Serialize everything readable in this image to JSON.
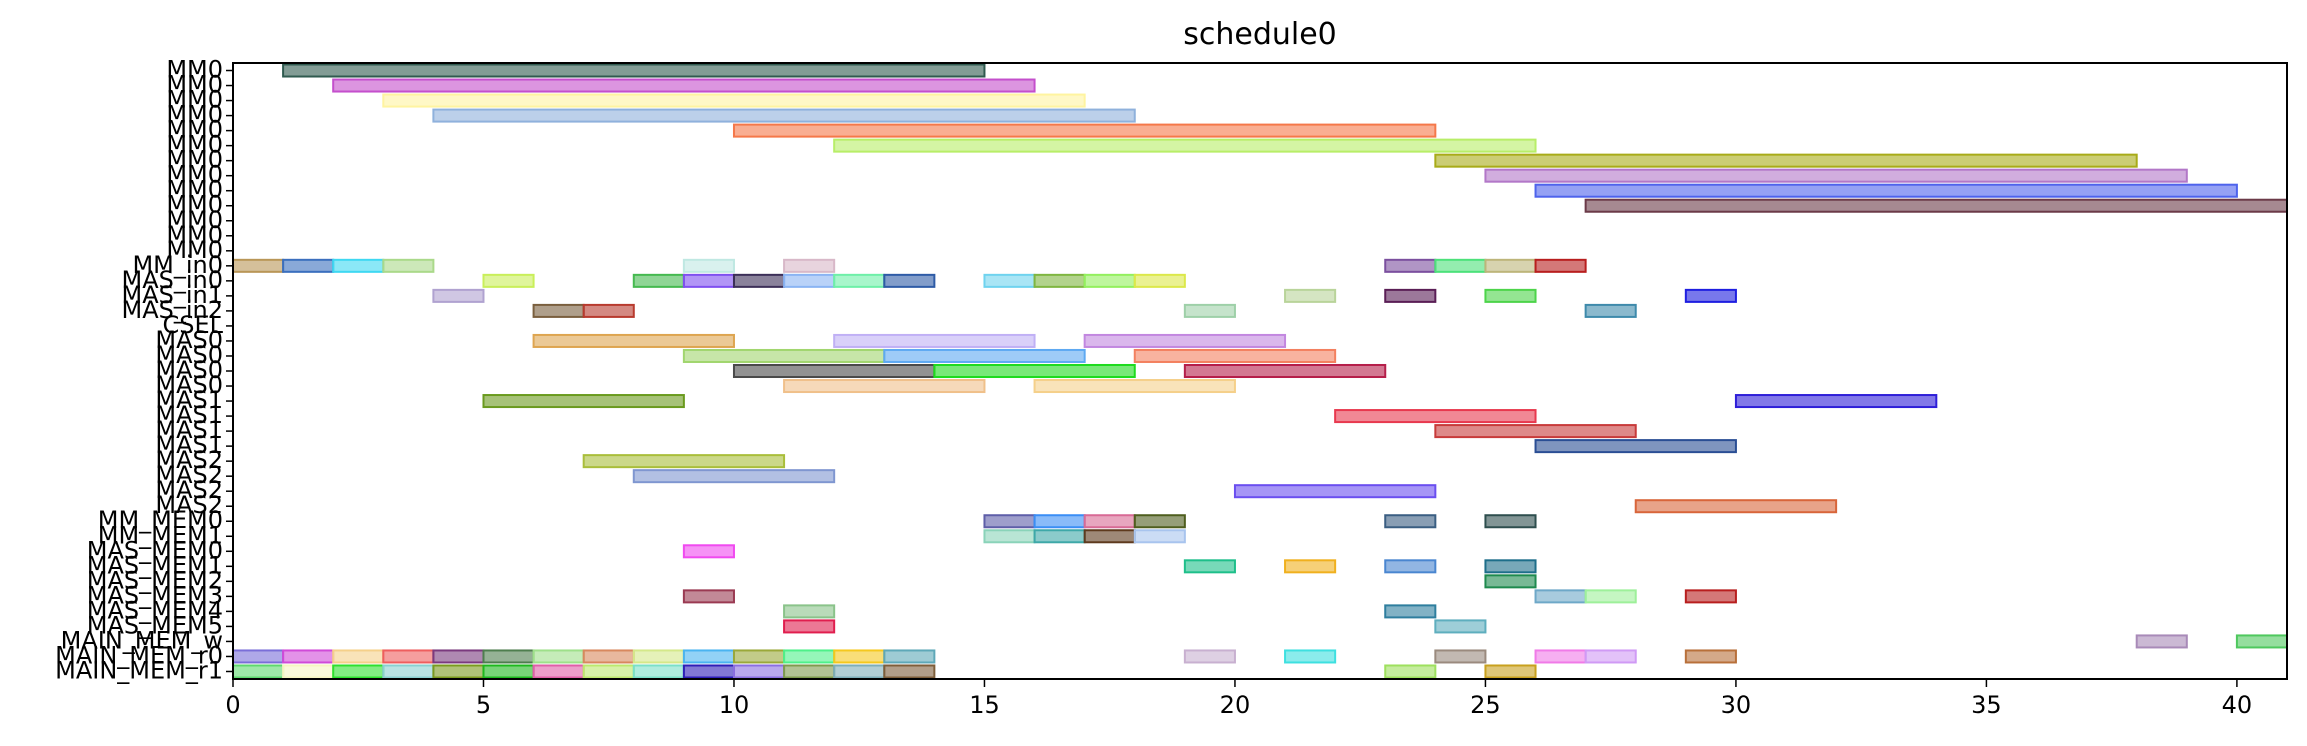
{
  "chart_data": {
    "type": "gantt",
    "title": "schedule0",
    "xlabel": "",
    "ylabel": "",
    "xlim": [
      0,
      41
    ],
    "xticks": [
      0,
      5,
      10,
      15,
      20,
      25,
      30,
      35,
      40
    ],
    "grid": false,
    "rows": [
      "MM0",
      "MM0",
      "MM0",
      "MM0",
      "MM0",
      "MM0",
      "MM0",
      "MM0",
      "MM0",
      "MM0",
      "MM0",
      "MM0",
      "MM0",
      "MM_in0",
      "MAS_in0",
      "MAS_in1",
      "MAS_in2",
      "CSEL",
      "MAS0",
      "MAS0",
      "MAS0",
      "MAS0",
      "MAS1",
      "MAS1",
      "MAS1",
      "MAS1",
      "MAS2",
      "MAS2",
      "MAS2",
      "MAS2",
      "MM_MEM0",
      "MM_MEM1",
      "MAS_MEM0",
      "MAS_MEM1",
      "MAS_MEM2",
      "MAS_MEM3",
      "MAS_MEM4",
      "MAS_MEM5",
      "MAIN_MEM_w",
      "MAIN_MEM_r0",
      "MAIN_MEM_r1"
    ],
    "tasks": [
      {
        "row": 0,
        "start": 1,
        "end": 15,
        "color": "#2f5a4f"
      },
      {
        "row": 1,
        "start": 2,
        "end": 16,
        "color": "#c44fcc"
      },
      {
        "row": 2,
        "start": 3,
        "end": 17,
        "color": "#fff4a0"
      },
      {
        "row": 3,
        "start": 4,
        "end": 18,
        "color": "#8fb1dc"
      },
      {
        "row": 4,
        "start": 10,
        "end": 24,
        "color": "#f5784a"
      },
      {
        "row": 5,
        "start": 12,
        "end": 26,
        "color": "#b8ee68"
      },
      {
        "row": 6,
        "start": 24,
        "end": 38,
        "color": "#a8ab18"
      },
      {
        "row": 7,
        "start": 25,
        "end": 39,
        "color": "#b277c8"
      },
      {
        "row": 8,
        "start": 26,
        "end": 40,
        "color": "#4e63ec"
      },
      {
        "row": 9,
        "start": 27,
        "end": 41,
        "color": "#6b3a48"
      },
      {
        "row": 13,
        "start": 0,
        "end": 1,
        "color": "#b99657"
      },
      {
        "row": 13,
        "start": 1,
        "end": 2,
        "color": "#3b6fbe"
      },
      {
        "row": 13,
        "start": 2,
        "end": 3,
        "color": "#3ed8f2"
      },
      {
        "row": 13,
        "start": 3,
        "end": 4,
        "color": "#aad98a"
      },
      {
        "row": 13,
        "start": 9,
        "end": 10,
        "color": "#bfe8e2"
      },
      {
        "row": 13,
        "start": 11,
        "end": 12,
        "color": "#d8b8c8"
      },
      {
        "row": 13,
        "start": 23,
        "end": 24,
        "color": "#7b4f9e"
      },
      {
        "row": 13,
        "start": 24,
        "end": 25,
        "color": "#4ce17a"
      },
      {
        "row": 13,
        "start": 25,
        "end": 26,
        "color": "#bdb57a"
      },
      {
        "row": 13,
        "start": 26,
        "end": 27,
        "color": "#b81e1e"
      },
      {
        "row": 14,
        "start": 5,
        "end": 6,
        "color": "#c9ef5a"
      },
      {
        "row": 14,
        "start": 8,
        "end": 9,
        "color": "#45b94f"
      },
      {
        "row": 14,
        "start": 9,
        "end": 10,
        "color": "#7f4ff0"
      },
      {
        "row": 14,
        "start": 10,
        "end": 11,
        "color": "#3c2f58"
      },
      {
        "row": 14,
        "start": 11,
        "end": 12,
        "color": "#8ab4f3"
      },
      {
        "row": 14,
        "start": 12,
        "end": 13,
        "color": "#6ef0a8"
      },
      {
        "row": 14,
        "start": 13,
        "end": 14,
        "color": "#2e5ba6"
      },
      {
        "row": 14,
        "start": 15,
        "end": 16,
        "color": "#6fd3ef"
      },
      {
        "row": 14,
        "start": 16,
        "end": 17,
        "color": "#7fb640"
      },
      {
        "row": 14,
        "start": 17,
        "end": 18,
        "color": "#93f05e"
      },
      {
        "row": 14,
        "start": 18,
        "end": 19,
        "color": "#dce84a"
      },
      {
        "row": 15,
        "start": 4,
        "end": 5,
        "color": "#b0a2d0"
      },
      {
        "row": 15,
        "start": 21,
        "end": 22,
        "color": "#b9d49a"
      },
      {
        "row": 15,
        "start": 23,
        "end": 24,
        "color": "#5a1e56"
      },
      {
        "row": 15,
        "start": 25,
        "end": 26,
        "color": "#4dd44a"
      },
      {
        "row": 15,
        "start": 29,
        "end": 30,
        "color": "#1e1ee0"
      },
      {
        "row": 16,
        "start": 6,
        "end": 7,
        "color": "#7a5f3e"
      },
      {
        "row": 16,
        "start": 7,
        "end": 8,
        "color": "#b83a2e"
      },
      {
        "row": 16,
        "start": 19,
        "end": 20,
        "color": "#9ed0a8"
      },
      {
        "row": 16,
        "start": 27,
        "end": 28,
        "color": "#3e8aab"
      },
      {
        "row": 18,
        "start": 6,
        "end": 10,
        "color": "#dea550"
      },
      {
        "row": 18,
        "start": 12,
        "end": 16,
        "color": "#c0b0f5"
      },
      {
        "row": 18,
        "start": 17,
        "end": 21,
        "color": "#c287e0"
      },
      {
        "row": 19,
        "start": 9,
        "end": 13,
        "color": "#a1d66e"
      },
      {
        "row": 19,
        "start": 13,
        "end": 17,
        "color": "#5ea9f2"
      },
      {
        "row": 19,
        "start": 18,
        "end": 22,
        "color": "#f3805f"
      },
      {
        "row": 20,
        "start": 10,
        "end": 14,
        "color": "#4a4a4a"
      },
      {
        "row": 20,
        "start": 14,
        "end": 18,
        "color": "#1edb1e"
      },
      {
        "row": 20,
        "start": 19,
        "end": 23,
        "color": "#b51e4a"
      },
      {
        "row": 21,
        "start": 11,
        "end": 15,
        "color": "#f0c08a"
      },
      {
        "row": 21,
        "start": 16,
        "end": 20,
        "color": "#f5d08a"
      },
      {
        "row": 22,
        "start": 5,
        "end": 9,
        "color": "#6a9a1e"
      },
      {
        "row": 22,
        "start": 30,
        "end": 34,
        "color": "#2e1ed8"
      },
      {
        "row": 23,
        "start": 22,
        "end": 26,
        "color": "#e8384e"
      },
      {
        "row": 24,
        "start": 24,
        "end": 28,
        "color": "#c83a3a"
      },
      {
        "row": 25,
        "start": 26,
        "end": 30,
        "color": "#2a4e94"
      },
      {
        "row": 26,
        "start": 7,
        "end": 11,
        "color": "#a9be3a"
      },
      {
        "row": 27,
        "start": 8,
        "end": 12,
        "color": "#7f96d0"
      },
      {
        "row": 28,
        "start": 20,
        "end": 24,
        "color": "#6a4ef0"
      },
      {
        "row": 29,
        "start": 28,
        "end": 32,
        "color": "#d8653a"
      },
      {
        "row": 30,
        "start": 15,
        "end": 16,
        "color": "#5e5ea8"
      },
      {
        "row": 30,
        "start": 16,
        "end": 17,
        "color": "#3a8ef5"
      },
      {
        "row": 30,
        "start": 17,
        "end": 18,
        "color": "#d86a95"
      },
      {
        "row": 30,
        "start": 18,
        "end": 19,
        "color": "#4e5e1e"
      },
      {
        "row": 30,
        "start": 23,
        "end": 24,
        "color": "#3a5e82"
      },
      {
        "row": 30,
        "start": 25,
        "end": 26,
        "color": "#2e4e4e"
      },
      {
        "row": 31,
        "start": 15,
        "end": 16,
        "color": "#8ad3b9"
      },
      {
        "row": 31,
        "start": 16,
        "end": 17,
        "color": "#3ea8a8"
      },
      {
        "row": 31,
        "start": 17,
        "end": 18,
        "color": "#5e3a1e"
      },
      {
        "row": 31,
        "start": 18,
        "end": 19,
        "color": "#a8c4ee"
      },
      {
        "row": 32,
        "start": 9,
        "end": 10,
        "color": "#f04af0"
      },
      {
        "row": 33,
        "start": 19,
        "end": 20,
        "color": "#1ebf8a"
      },
      {
        "row": 33,
        "start": 21,
        "end": 22,
        "color": "#f0b01e"
      },
      {
        "row": 33,
        "start": 23,
        "end": 24,
        "color": "#4a86d0"
      },
      {
        "row": 33,
        "start": 25,
        "end": 26,
        "color": "#1e6e8a"
      },
      {
        "row": 34,
        "start": 25,
        "end": 26,
        "color": "#1e8a4e"
      },
      {
        "row": 35,
        "start": 9,
        "end": 10,
        "color": "#9a3a52"
      },
      {
        "row": 35,
        "start": 26,
        "end": 27,
        "color": "#6ea8c8"
      },
      {
        "row": 35,
        "start": 27,
        "end": 28,
        "color": "#9ef09a"
      },
      {
        "row": 35,
        "start": 29,
        "end": 30,
        "color": "#b81e1e"
      },
      {
        "row": 36,
        "start": 11,
        "end": 12,
        "color": "#8ac38a"
      },
      {
        "row": 36,
        "start": 23,
        "end": 24,
        "color": "#2e7e9e"
      },
      {
        "row": 37,
        "start": 11,
        "end": 12,
        "color": "#e01e4e"
      },
      {
        "row": 37,
        "start": 24,
        "end": 25,
        "color": "#5eaebe"
      },
      {
        "row": 38,
        "start": 38,
        "end": 39,
        "color": "#a88ab8"
      },
      {
        "row": 38,
        "start": 40,
        "end": 41,
        "color": "#4ec85e"
      },
      {
        "row": 39,
        "start": 0,
        "end": 1,
        "color": "#7a6ed8"
      },
      {
        "row": 39,
        "start": 1,
        "end": 2,
        "color": "#d04ad8"
      },
      {
        "row": 39,
        "start": 2,
        "end": 3,
        "color": "#f5d08a"
      },
      {
        "row": 39,
        "start": 3,
        "end": 4,
        "color": "#ee5e5e"
      },
      {
        "row": 39,
        "start": 4,
        "end": 5,
        "color": "#7a3a7e"
      },
      {
        "row": 39,
        "start": 5,
        "end": 6,
        "color": "#4e7e4e"
      },
      {
        "row": 39,
        "start": 6,
        "end": 7,
        "color": "#9ee08a"
      },
      {
        "row": 39,
        "start": 7,
        "end": 8,
        "color": "#d8885e"
      },
      {
        "row": 39,
        "start": 8,
        "end": 9,
        "color": "#d4e88a"
      },
      {
        "row": 39,
        "start": 9,
        "end": 10,
        "color": "#4ab4f0"
      },
      {
        "row": 39,
        "start": 10,
        "end": 11,
        "color": "#9aa83a"
      },
      {
        "row": 39,
        "start": 11,
        "end": 12,
        "color": "#4ef08a"
      },
      {
        "row": 39,
        "start": 12,
        "end": 13,
        "color": "#f5c81e"
      },
      {
        "row": 39,
        "start": 13,
        "end": 14,
        "color": "#5ea8b8"
      },
      {
        "row": 39,
        "start": 19,
        "end": 20,
        "color": "#c8b0d0"
      },
      {
        "row": 39,
        "start": 21,
        "end": 22,
        "color": "#3ee0e0"
      },
      {
        "row": 39,
        "start": 24,
        "end": 25,
        "color": "#9a8a7e"
      },
      {
        "row": 39,
        "start": 26,
        "end": 27,
        "color": "#f07ae8"
      },
      {
        "row": 39,
        "start": 27,
        "end": 28,
        "color": "#d09af5"
      },
      {
        "row": 39,
        "start": 29,
        "end": 30,
        "color": "#b8703a"
      },
      {
        "row": 40,
        "start": 0,
        "end": 1,
        "color": "#5ed86e"
      },
      {
        "row": 40,
        "start": 1,
        "end": 2,
        "color": "#f5f5c0"
      },
      {
        "row": 40,
        "start": 2,
        "end": 3,
        "color": "#2ee02e"
      },
      {
        "row": 40,
        "start": 3,
        "end": 4,
        "color": "#8ad0d0"
      },
      {
        "row": 40,
        "start": 4,
        "end": 5,
        "color": "#7a9a1e"
      },
      {
        "row": 40,
        "start": 5,
        "end": 6,
        "color": "#1eb81e"
      },
      {
        "row": 40,
        "start": 6,
        "end": 7,
        "color": "#e05ea8"
      },
      {
        "row": 40,
        "start": 7,
        "end": 8,
        "color": "#bde86e"
      },
      {
        "row": 40,
        "start": 8,
        "end": 9,
        "color": "#7ae0c8"
      },
      {
        "row": 40,
        "start": 9,
        "end": 10,
        "color": "#2e1eb8"
      },
      {
        "row": 40,
        "start": 10,
        "end": 11,
        "color": "#8a6ee0"
      },
      {
        "row": 40,
        "start": 11,
        "end": 12,
        "color": "#7e9a4e"
      },
      {
        "row": 40,
        "start": 12,
        "end": 13,
        "color": "#7eaeb8"
      },
      {
        "row": 40,
        "start": 13,
        "end": 14,
        "color": "#7e5e3a"
      },
      {
        "row": 40,
        "start": 23,
        "end": 24,
        "color": "#9ee05e"
      },
      {
        "row": 40,
        "start": 25,
        "end": 26,
        "color": "#c8a01e"
      }
    ]
  }
}
